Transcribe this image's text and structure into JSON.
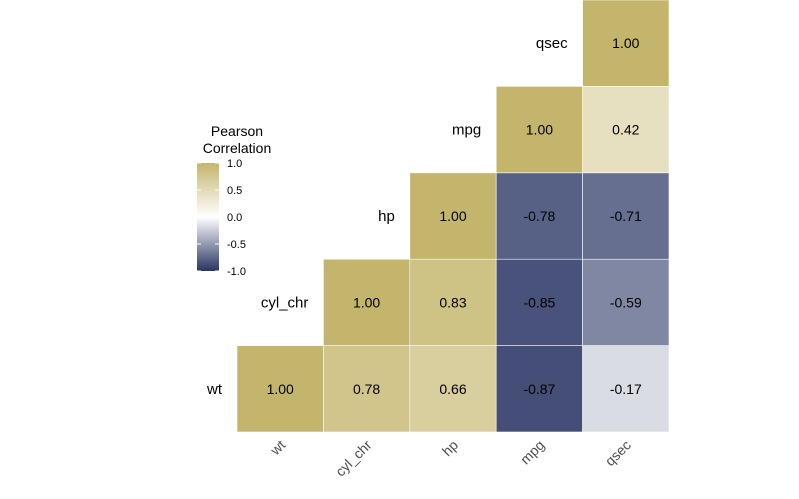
{
  "chart_data": {
    "type": "heatmap",
    "variables": [
      "wt",
      "cyl_chr",
      "hp",
      "mpg",
      "qsec"
    ],
    "cells": [
      {
        "row": "wt",
        "col": "wt",
        "value": 1.0,
        "label": "1.00"
      },
      {
        "row": "wt",
        "col": "cyl_chr",
        "value": 0.78,
        "label": "0.78"
      },
      {
        "row": "wt",
        "col": "hp",
        "value": 0.66,
        "label": "0.66"
      },
      {
        "row": "wt",
        "col": "mpg",
        "value": -0.87,
        "label": "-0.87"
      },
      {
        "row": "wt",
        "col": "qsec",
        "value": -0.17,
        "label": "-0.17"
      },
      {
        "row": "cyl_chr",
        "col": "cyl_chr",
        "value": 1.0,
        "label": "1.00"
      },
      {
        "row": "cyl_chr",
        "col": "hp",
        "value": 0.83,
        "label": "0.83"
      },
      {
        "row": "cyl_chr",
        "col": "mpg",
        "value": -0.85,
        "label": "-0.85"
      },
      {
        "row": "cyl_chr",
        "col": "qsec",
        "value": -0.59,
        "label": "-0.59"
      },
      {
        "row": "hp",
        "col": "hp",
        "value": 1.0,
        "label": "1.00"
      },
      {
        "row": "hp",
        "col": "mpg",
        "value": -0.78,
        "label": "-0.78"
      },
      {
        "row": "hp",
        "col": "qsec",
        "value": -0.71,
        "label": "-0.71"
      },
      {
        "row": "mpg",
        "col": "mpg",
        "value": 1.0,
        "label": "1.00"
      },
      {
        "row": "mpg",
        "col": "qsec",
        "value": 0.42,
        "label": "0.42"
      },
      {
        "row": "qsec",
        "col": "qsec",
        "value": 1.0,
        "label": "1.00"
      }
    ],
    "legend": {
      "title_line1": "Pearson",
      "title_line2": "Correlation",
      "ticks": [
        {
          "value": 1.0,
          "label": "1.0"
        },
        {
          "value": 0.5,
          "label": "0.5"
        },
        {
          "value": 0.0,
          "label": "0.0"
        },
        {
          "value": -0.5,
          "label": "-0.5"
        },
        {
          "value": -1.0,
          "label": "-1.0"
        }
      ],
      "range": [
        -1,
        1
      ],
      "position": "left"
    },
    "colors": {
      "low": "#283462",
      "mid": "#ffffff",
      "high": "#c4b56c"
    },
    "layout_type": "lower-triangle-corrplot",
    "grid": false
  }
}
